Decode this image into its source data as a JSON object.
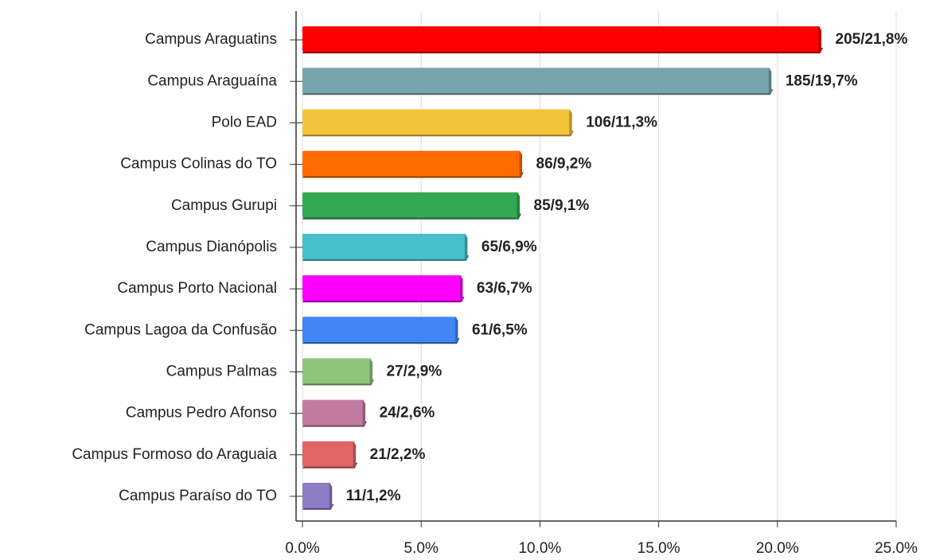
{
  "chart_data": {
    "type": "bar",
    "orientation": "horizontal",
    "categories": [
      "Campus Araguatins",
      "Campus Araguaína",
      "Polo EAD",
      "Campus Colinas do TO",
      "Campus Gurupi",
      "Campus Dianópolis",
      "Campus Porto Nacional",
      "Campus Lagoa da Confusão",
      "Campus Palmas",
      "Campus Pedro Afonso",
      "Campus Formoso do Araguaia",
      "Campus Paraíso do TO"
    ],
    "values": [
      21.8,
      19.7,
      11.3,
      9.2,
      9.1,
      6.9,
      6.7,
      6.5,
      2.9,
      2.6,
      2.2,
      1.2
    ],
    "value_labels": [
      "205/21,8%",
      "185/19,7%",
      "106/11,3%",
      "86/9,2%",
      "85/9,1%",
      "65/6,9%",
      "63/6,7%",
      "61/6,5%",
      "27/2,9%",
      "24/2,6%",
      "21/2,2%",
      "11/1,2%"
    ],
    "colors": [
      "#ff0000",
      "#78a4ae",
      "#f2c43a",
      "#ff6a00",
      "#33a852",
      "#47bfcb",
      "#ff00ff",
      "#4285f4",
      "#8fc47c",
      "#c27ba0",
      "#e06666",
      "#8e7cc3"
    ],
    "xlim": [
      0,
      25
    ],
    "xticks": [
      {
        "value": 0,
        "label": "0.0%"
      },
      {
        "value": 5,
        "label": "5.0%"
      },
      {
        "value": 10,
        "label": "10.0%"
      },
      {
        "value": 15,
        "label": "15.0%"
      },
      {
        "value": 20,
        "label": "20.0%"
      },
      {
        "value": 25,
        "label": "25.0%"
      }
    ],
    "grid": true
  }
}
